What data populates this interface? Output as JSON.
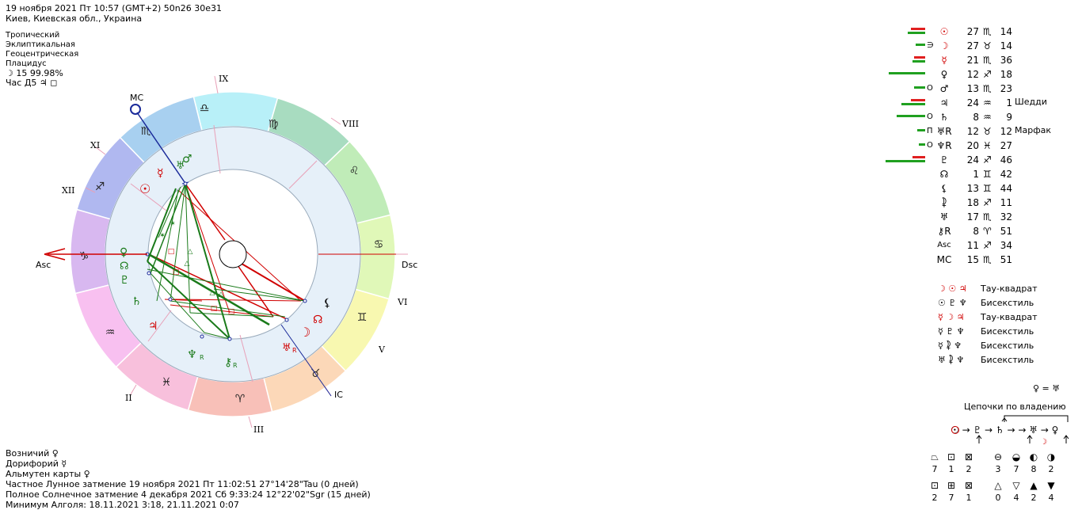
{
  "header": {
    "line1": "19 ноября 2021  Пт  10:57 (GMT+2) 50n26  30e31",
    "line2": "Киев, Киевская обл., Украина"
  },
  "settings": {
    "lines": [
      "Тропический",
      "Эклиптикальная",
      "Геоцентрическая",
      "Плацидус"
    ],
    "moon_line": "☽  15 99.98%",
    "hour_line": "Час Д5  ♃  ◻"
  },
  "wheel": {
    "angles": {
      "asc": "Asc",
      "dsc": "Dsc",
      "mc": "MC",
      "ic": "IC"
    },
    "houses": [
      "II",
      "III",
      "V",
      "VI",
      "VIII",
      "IX",
      "XI",
      "XII"
    ],
    "signs": [
      "♑",
      "♐",
      "♏",
      "♎",
      "♍",
      "♌",
      "♋",
      "♊",
      "♉",
      "♈",
      "♓",
      "♒"
    ],
    "planet_glyphs": [
      "♅",
      "♂",
      "☿",
      "☉",
      "♀",
      "☊",
      "♇",
      "♄",
      "♃",
      "♆",
      "⚷",
      "⚸",
      "☊",
      "☽",
      "♅"
    ],
    "planet_retro": [
      "R",
      "R",
      "R",
      "R"
    ]
  },
  "planets": [
    {
      "glyph": "☉",
      "value": "27",
      "sign": "♏",
      "min": "14",
      "prefix": "",
      "color": "#d00000"
    },
    {
      "glyph": "☽",
      "value": "27",
      "sign": "♉",
      "min": "14",
      "prefix": "∋",
      "color": "#d00000"
    },
    {
      "glyph": "☿",
      "value": "21",
      "sign": "♏",
      "min": "36",
      "prefix": "",
      "color": "#d00000"
    },
    {
      "glyph": "♀",
      "value": "12",
      "sign": "♐",
      "min": "18",
      "prefix": "",
      "color": "#000"
    },
    {
      "glyph": "♂",
      "value": "13",
      "sign": "♏",
      "min": "23",
      "prefix": "О",
      "color": "#000"
    },
    {
      "glyph": "♃",
      "value": "24",
      "sign": "♒",
      "min": "1",
      "prefix": "",
      "color": "#000"
    },
    {
      "glyph": "♄",
      "value": "8",
      "sign": "♒",
      "min": "9",
      "prefix": "О",
      "color": "#000"
    },
    {
      "glyph": "♅R",
      "value": "12",
      "sign": "♉",
      "min": "12",
      "prefix": "П",
      "color": "#000"
    },
    {
      "glyph": "♆R",
      "value": "20",
      "sign": "♓",
      "min": "27",
      "prefix": "О",
      "color": "#000"
    },
    {
      "glyph": "♇",
      "value": "24",
      "sign": "♐",
      "min": "46",
      "prefix": "",
      "color": "#000"
    },
    {
      "glyph": "☊",
      "value": "1",
      "sign": "♊",
      "min": "42",
      "prefix": "",
      "color": "#000"
    },
    {
      "glyph": "⚸",
      "value": "13",
      "sign": "♊",
      "min": "44",
      "prefix": "",
      "color": "#000"
    },
    {
      "glyph": "⯝",
      "value": "18",
      "sign": "♐",
      "min": "11",
      "prefix": "",
      "color": "#000"
    },
    {
      "glyph": "♅",
      "value": "17",
      "sign": "♏",
      "min": "32",
      "prefix": "",
      "color": "#000"
    },
    {
      "glyph": "⚷R",
      "value": "8",
      "sign": "♈",
      "min": "51",
      "prefix": "",
      "color": "#000"
    },
    {
      "glyph": "Asc",
      "value": "11",
      "sign": "♐",
      "min": "34",
      "prefix": "",
      "color": "#000"
    },
    {
      "glyph": "MC",
      "value": "15",
      "sign": "♏",
      "min": "51",
      "prefix": "",
      "color": "#000"
    }
  ],
  "planet_bars": [
    {
      "red": 18,
      "green": 22
    },
    {
      "red": 0,
      "green": 12
    },
    {
      "red": 14,
      "green": 16
    },
    {
      "red": 0,
      "green": 46
    },
    {
      "red": 0,
      "green": 14
    },
    {
      "red": 18,
      "green": 30
    },
    {
      "red": 0,
      "green": 36
    },
    {
      "red": 0,
      "green": 10
    },
    {
      "red": 0,
      "green": 8
    },
    {
      "red": 16,
      "green": 50
    }
  ],
  "stars": [
    {
      "name": "Шедди",
      "row": 5
    },
    {
      "name": "Марфак",
      "row": 7
    }
  ],
  "aspects": [
    {
      "glyphs": "☽ ☉ ♃",
      "name": "Тау-квадрат"
    },
    {
      "glyphs": "☉ ♇ ♆",
      "name": "Бисекстиль"
    },
    {
      "glyphs": "☿ ☽ ♃",
      "name": "Тау-квадрат"
    },
    {
      "glyphs": "☿ ♇ ♆",
      "name": "Бисекстиль"
    },
    {
      "glyphs": "☿ ⯝ ♆",
      "name": "Бисекстиль"
    },
    {
      "glyphs": "♅ ⯝ ♆",
      "name": "Бисекстиль"
    }
  ],
  "reception": "♀ = ♅",
  "chains": {
    "title": "Цепочки по владению",
    "chain": "☉ → ♇ → ♄ → → ♅ → ♀"
  },
  "counts": {
    "top_symbols": [
      "⏢",
      "⊡",
      "⊠",
      "⊖",
      "◒",
      "◐",
      "◑"
    ],
    "top_values": [
      "7",
      "1",
      "2",
      "3",
      "7",
      "8",
      "2"
    ],
    "bottom_symbols": [
      "⊡",
      "⊞",
      "⊠",
      "△",
      "▽",
      "▲",
      "▼"
    ],
    "bottom_values": [
      "2",
      "7",
      "1",
      "0",
      "4",
      "2",
      "4"
    ]
  },
  "footer": {
    "voznichy": "Возничий  ♀",
    "doriforiy": "Дорифорий  ☿",
    "almuten": "Альмутен карты  ♀",
    "eclipse1": "Частное Лунное затмение 19 ноября 2021 Пт 11:02:51 27°14'28\"Tau (0 дней)",
    "eclipse2": "Полное Солнечное затмение 4 декабря 2021 Сб  9:33:24 12°22'02\"Sgr (15 дней)",
    "algol": "Минимум Алголя: 18.11.2021  3:18,  21.11.2021  0:07"
  }
}
